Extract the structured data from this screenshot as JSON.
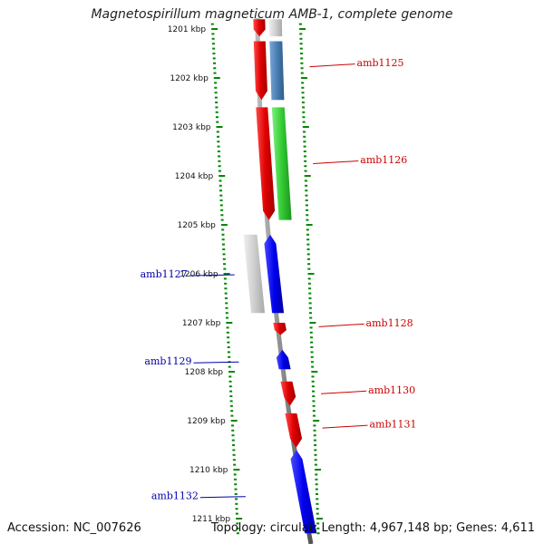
{
  "title": "Magnetospirillum magneticum AMB-1, complete genome",
  "footer": {
    "accession": "Accession: NC_007626",
    "summary": "Topology: circular; Length: 4,967,148 bp; Genes: 4,611"
  },
  "colors": {
    "forward": "#e00000",
    "reverse": "#0000ee",
    "backbone": "#888888",
    "ticks": "#008800",
    "gray_gene": "#c8c8c8",
    "steelblue_gene": "#4a7fb5",
    "green_gene": "#33cc33",
    "label_forward": "#cc0000",
    "label_reverse": "#0000aa"
  },
  "chart_data": {
    "type": "genome-map",
    "axis_unit": "kbp",
    "range_kbp": [
      1200.8,
      1211.3
    ],
    "tick_labels": [
      {
        "kbp": 1201,
        "label": "1201 kbp"
      },
      {
        "kbp": 1202,
        "label": "1202 kbp"
      },
      {
        "kbp": 1203,
        "label": "1203 kbp"
      },
      {
        "kbp": 1204,
        "label": "1204 kbp"
      },
      {
        "kbp": 1205,
        "label": "1205 kbp"
      },
      {
        "kbp": 1206,
        "label": "1206 kbp"
      },
      {
        "kbp": 1207,
        "label": "1207 kbp"
      },
      {
        "kbp": 1208,
        "label": "1208 kbp"
      },
      {
        "kbp": 1209,
        "label": "1209 kbp"
      },
      {
        "kbp": 1210,
        "label": "1210 kbp"
      },
      {
        "kbp": 1211,
        "label": "1211 kbp"
      }
    ],
    "genes": [
      {
        "start": 1200.8,
        "end": 1201.15,
        "strand": "+",
        "track": "inner",
        "color": "forward"
      },
      {
        "start": 1200.8,
        "end": 1201.15,
        "strand": "none",
        "track": "outer",
        "color": "gray_gene"
      },
      {
        "start": 1201.25,
        "end": 1202.45,
        "strand": "+",
        "track": "inner",
        "color": "forward"
      },
      {
        "start": 1201.25,
        "end": 1202.45,
        "strand": "none",
        "track": "outer",
        "color": "steelblue_gene",
        "label": "amb1125"
      },
      {
        "start": 1202.6,
        "end": 1204.9,
        "strand": "+",
        "track": "inner",
        "color": "forward"
      },
      {
        "start": 1202.6,
        "end": 1204.9,
        "strand": "none",
        "track": "outer",
        "color": "green_gene",
        "label": "amb1126"
      },
      {
        "start": 1205.2,
        "end": 1206.8,
        "strand": "none",
        "track": "left",
        "color": "gray_gene"
      },
      {
        "start": 1205.2,
        "end": 1206.8,
        "strand": "-",
        "track": "inner",
        "color": "reverse",
        "label": "amb1127"
      },
      {
        "start": 1207.0,
        "end": 1207.25,
        "strand": "+",
        "track": "inner",
        "color": "forward",
        "label": "amb1128"
      },
      {
        "start": 1207.55,
        "end": 1207.95,
        "strand": "-",
        "track": "inner",
        "color": "reverse",
        "label": "amb1129"
      },
      {
        "start": 1208.2,
        "end": 1208.7,
        "strand": "+",
        "track": "inner",
        "color": "forward",
        "label": "amb1130"
      },
      {
        "start": 1208.85,
        "end": 1209.55,
        "strand": "+",
        "track": "inner",
        "color": "forward",
        "label": "amb1131"
      },
      {
        "start": 1209.6,
        "end": 1211.3,
        "strand": "-",
        "track": "inner",
        "color": "reverse",
        "label": "amb1132"
      }
    ],
    "gene_labels": [
      {
        "text": "amb1125",
        "side": "right",
        "kbp": 1201.77,
        "color": "label_forward"
      },
      {
        "text": "amb1126",
        "side": "right",
        "kbp": 1203.75,
        "color": "label_forward"
      },
      {
        "text": "amb1127",
        "side": "left",
        "kbp": 1206.02,
        "color": "label_reverse"
      },
      {
        "text": "amb1128",
        "side": "right",
        "kbp": 1207.08,
        "color": "label_forward"
      },
      {
        "text": "amb1129",
        "side": "left",
        "kbp": 1207.8,
        "color": "label_reverse"
      },
      {
        "text": "amb1130",
        "side": "right",
        "kbp": 1208.45,
        "color": "label_forward"
      },
      {
        "text": "amb1131",
        "side": "right",
        "kbp": 1209.15,
        "color": "label_forward"
      },
      {
        "text": "amb1132",
        "side": "left",
        "kbp": 1210.55,
        "color": "label_reverse"
      }
    ]
  }
}
